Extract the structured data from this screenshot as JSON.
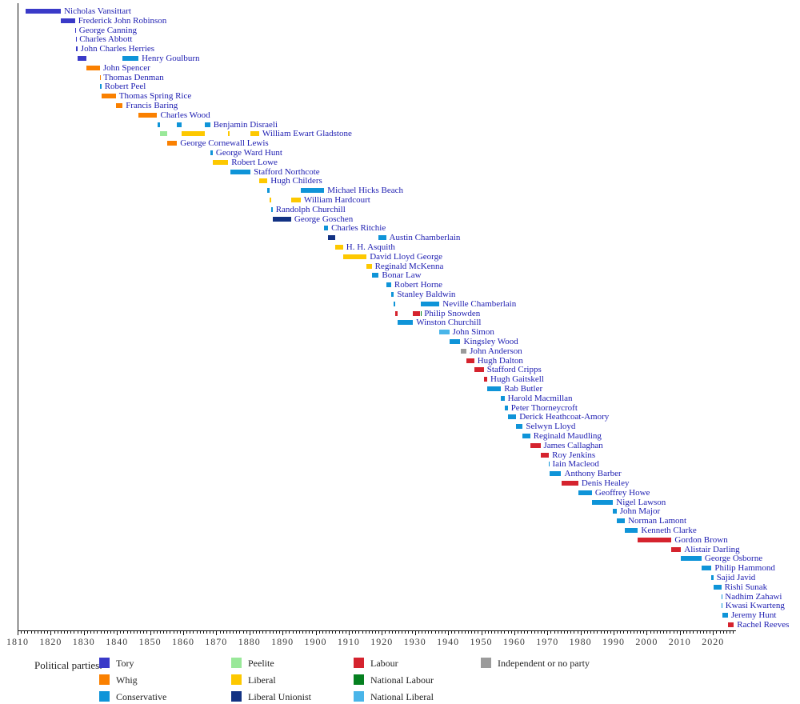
{
  "chart_data": {
    "type": "timeline",
    "description": "Terms of UK Chancellors of the Exchequer as horizontal bars coloured by political party",
    "x_axis": {
      "min": 1810,
      "max": 2027,
      "major_tick_step": 10,
      "minor_tick_step": 1,
      "tick_labels": [
        1810,
        1820,
        1830,
        1840,
        1850,
        1860,
        1870,
        1880,
        1890,
        1900,
        1910,
        1920,
        1930,
        1940,
        1950,
        1960,
        1970,
        1980,
        1990,
        2000,
        2010,
        2020
      ]
    },
    "colors": {
      "name_text": "#1c1cb0",
      "axis": "#111111",
      "tick_label": "#3a3a3a",
      "legend_text": "#222222"
    },
    "parties": {
      "tory": {
        "label": "Tory",
        "color": "#3a3ac8"
      },
      "whig": {
        "label": "Whig",
        "color": "#fa8000"
      },
      "conservative": {
        "label": "Conservative",
        "color": "#0f94d8"
      },
      "peelite": {
        "label": "Peelite",
        "color": "#99e899"
      },
      "liberal": {
        "label": "Liberal",
        "color": "#fdc800"
      },
      "liberal_unionist": {
        "label": "Liberal Unionist",
        "color": "#123283"
      },
      "labour": {
        "label": "Labour",
        "color": "#d5232e"
      },
      "national_labour": {
        "label": "National Labour",
        "color": "#058020"
      },
      "national_liberal": {
        "label": "National Liberal",
        "color": "#49b5e9"
      },
      "independent": {
        "label": "Independent or no party",
        "color": "#9b9b9b"
      }
    },
    "legend": {
      "title": "Political parties:",
      "columns": [
        [
          "tory",
          "whig",
          "conservative"
        ],
        [
          "peelite",
          "liberal",
          "liberal_unionist"
        ],
        [
          "labour",
          "national_labour",
          "national_liberal"
        ],
        [
          "independent"
        ]
      ]
    },
    "chancellors": [
      {
        "name": "Nicholas Vansittart",
        "terms": [
          [
            1812.4,
            1823.08,
            "tory"
          ]
        ]
      },
      {
        "name": "Frederick John Robinson",
        "terms": [
          [
            1823.08,
            1827.32,
            "tory"
          ]
        ]
      },
      {
        "name": "George Canning",
        "terms": [
          [
            1827.32,
            1827.6,
            "tory"
          ]
        ]
      },
      {
        "name": "Charles Abbott",
        "terms": [
          [
            1827.6,
            1827.68,
            "tory"
          ]
        ]
      },
      {
        "name": "John Charles Herries",
        "terms": [
          [
            1827.68,
            1828.07,
            "tory"
          ]
        ]
      },
      {
        "name": "Henry Goulburn",
        "terms": [
          [
            1828.07,
            1830.88,
            "tory"
          ],
          [
            1841.7,
            1846.5,
            "conservative"
          ]
        ]
      },
      {
        "name": "John Spencer",
        "terms": [
          [
            1830.88,
            1834.87,
            "whig"
          ]
        ]
      },
      {
        "name": "Thomas Denman",
        "terms": [
          [
            1834.87,
            1834.96,
            "whig"
          ]
        ]
      },
      {
        "name": "Robert Peel",
        "terms": [
          [
            1834.96,
            1835.3,
            "conservative"
          ]
        ]
      },
      {
        "name": "Thomas Spring Rice",
        "terms": [
          [
            1835.3,
            1839.67,
            "whig"
          ]
        ]
      },
      {
        "name": "Francis Baring",
        "terms": [
          [
            1839.67,
            1841.7,
            "whig"
          ]
        ]
      },
      {
        "name": "Charles Wood",
        "terms": [
          [
            1846.5,
            1852.16,
            "whig"
          ]
        ]
      },
      {
        "name": "Benjamin Disraeli",
        "terms": [
          [
            1852.16,
            1852.97,
            "conservative"
          ],
          [
            1858.16,
            1859.45,
            "conservative"
          ],
          [
            1866.5,
            1868.16,
            "conservative"
          ]
        ]
      },
      {
        "name": "William Ewart Gladstone",
        "terms": [
          [
            1852.97,
            1855.14,
            "peelite"
          ],
          [
            1859.45,
            1866.5,
            "liberal"
          ],
          [
            1873.6,
            1874.14,
            "liberal"
          ],
          [
            1880.32,
            1882.95,
            "liberal"
          ]
        ]
      },
      {
        "name": "George Cornewall Lewis",
        "terms": [
          [
            1855.14,
            1858.16,
            "whig"
          ]
        ]
      },
      {
        "name": "George Ward Hunt",
        "terms": [
          [
            1868.16,
            1868.92,
            "conservative"
          ]
        ]
      },
      {
        "name": "Robert Lowe",
        "terms": [
          [
            1868.92,
            1873.6,
            "liberal"
          ]
        ]
      },
      {
        "name": "Stafford Northcote",
        "terms": [
          [
            1874.14,
            1880.32,
            "conservative"
          ]
        ]
      },
      {
        "name": "Hugh Childers",
        "terms": [
          [
            1882.95,
            1885.45,
            "liberal"
          ]
        ]
      },
      {
        "name": "Michael Hicks Beach",
        "terms": [
          [
            1885.45,
            1886.09,
            "conservative"
          ],
          [
            1895.5,
            1902.6,
            "conservative"
          ]
        ]
      },
      {
        "name": "William Hardcourt",
        "terms": [
          [
            1886.09,
            1886.6,
            "liberal"
          ],
          [
            1892.6,
            1895.5,
            "liberal"
          ]
        ]
      },
      {
        "name": "Randolph Churchill",
        "terms": [
          [
            1886.6,
            1887.0,
            "conservative"
          ]
        ]
      },
      {
        "name": "George Goschen",
        "terms": [
          [
            1887.0,
            1892.6,
            "liberal_unionist"
          ]
        ]
      },
      {
        "name": "Charles Ritchie",
        "terms": [
          [
            1902.6,
            1903.76,
            "conservative"
          ]
        ]
      },
      {
        "name": "Austin Chamberlain",
        "terms": [
          [
            1903.76,
            1905.93,
            "liberal_unionist"
          ],
          [
            1919.05,
            1921.27,
            "conservative"
          ]
        ]
      },
      {
        "name": "H. H. Asquith",
        "terms": [
          [
            1905.93,
            1908.29,
            "liberal"
          ]
        ]
      },
      {
        "name": "David Lloyd George",
        "terms": [
          [
            1908.29,
            1915.39,
            "liberal"
          ]
        ]
      },
      {
        "name": "Reginald McKenna",
        "terms": [
          [
            1915.39,
            1916.93,
            "liberal"
          ]
        ]
      },
      {
        "name": "Bonar Law",
        "terms": [
          [
            1916.93,
            1919.05,
            "conservative"
          ]
        ]
      },
      {
        "name": "Robert Horne",
        "terms": [
          [
            1921.27,
            1922.8,
            "conservative"
          ]
        ]
      },
      {
        "name": "Stanley Baldwin",
        "terms": [
          [
            1922.8,
            1923.65,
            "conservative"
          ]
        ]
      },
      {
        "name": "Neville Chamberlain",
        "terms": [
          [
            1923.65,
            1924.06,
            "conservative"
          ],
          [
            1931.84,
            1937.4,
            "conservative"
          ]
        ]
      },
      {
        "name": "Philip Snowden",
        "terms": [
          [
            1924.06,
            1924.84,
            "labour"
          ],
          [
            1929.43,
            1931.65,
            "labour"
          ],
          [
            1931.65,
            1931.84,
            "national_labour"
          ]
        ]
      },
      {
        "name": "Winston Churchill",
        "terms": [
          [
            1924.84,
            1929.43,
            "conservative"
          ]
        ]
      },
      {
        "name": "John Simon",
        "terms": [
          [
            1937.4,
            1940.36,
            "national_liberal"
          ]
        ]
      },
      {
        "name": "Kingsley Wood",
        "terms": [
          [
            1940.36,
            1943.72,
            "conservative"
          ]
        ]
      },
      {
        "name": "John Anderson",
        "terms": [
          [
            1943.72,
            1945.57,
            "independent"
          ]
        ]
      },
      {
        "name": "Hugh Dalton",
        "terms": [
          [
            1945.57,
            1947.88,
            "labour"
          ]
        ]
      },
      {
        "name": "Stafford Cripps",
        "terms": [
          [
            1947.88,
            1950.8,
            "labour"
          ]
        ]
      },
      {
        "name": "Hugh Gaitskell",
        "terms": [
          [
            1950.8,
            1951.82,
            "labour"
          ]
        ]
      },
      {
        "name": "Rab Butler",
        "terms": [
          [
            1951.82,
            1955.97,
            "conservative"
          ]
        ]
      },
      {
        "name": "Harold Macmillan",
        "terms": [
          [
            1955.97,
            1957.04,
            "conservative"
          ]
        ]
      },
      {
        "name": "Peter Thorneycroft",
        "terms": [
          [
            1957.04,
            1958.04,
            "conservative"
          ]
        ]
      },
      {
        "name": "Derick Heathcoat-Amory",
        "terms": [
          [
            1958.04,
            1960.56,
            "conservative"
          ]
        ]
      },
      {
        "name": "Selwyn Lloyd",
        "terms": [
          [
            1960.56,
            1962.54,
            "conservative"
          ]
        ]
      },
      {
        "name": "Reginald Maudling",
        "terms": [
          [
            1962.54,
            1964.79,
            "conservative"
          ]
        ]
      },
      {
        "name": "James Callaghan",
        "terms": [
          [
            1964.79,
            1967.9,
            "labour"
          ]
        ]
      },
      {
        "name": "Roy Jenkins",
        "terms": [
          [
            1967.9,
            1970.46,
            "labour"
          ]
        ]
      },
      {
        "name": "Iain Macleod",
        "terms": [
          [
            1970.46,
            1970.55,
            "conservative"
          ]
        ]
      },
      {
        "name": "Anthony Barber",
        "terms": [
          [
            1970.56,
            1974.17,
            "conservative"
          ]
        ]
      },
      {
        "name": "Denis Healey",
        "terms": [
          [
            1974.17,
            1979.35,
            "labour"
          ]
        ]
      },
      {
        "name": "Geoffrey Howe",
        "terms": [
          [
            1979.35,
            1983.44,
            "conservative"
          ]
        ]
      },
      {
        "name": "Nigel Lawson",
        "terms": [
          [
            1983.44,
            1989.82,
            "conservative"
          ]
        ]
      },
      {
        "name": "John Major",
        "terms": [
          [
            1989.82,
            1990.9,
            "conservative"
          ]
        ]
      },
      {
        "name": "Norman Lamont",
        "terms": [
          [
            1990.9,
            1993.4,
            "conservative"
          ]
        ]
      },
      {
        "name": "Kenneth Clarke",
        "terms": [
          [
            1993.4,
            1997.34,
            "conservative"
          ]
        ]
      },
      {
        "name": "Gordon Brown",
        "terms": [
          [
            1997.34,
            2007.49,
            "labour"
          ]
        ]
      },
      {
        "name": "Alistair Darling",
        "terms": [
          [
            2007.49,
            2010.36,
            "labour"
          ]
        ]
      },
      {
        "name": "George Osborne",
        "terms": [
          [
            2010.36,
            2016.54,
            "conservative"
          ]
        ]
      },
      {
        "name": "Philip Hammond",
        "terms": [
          [
            2016.54,
            2019.56,
            "conservative"
          ]
        ]
      },
      {
        "name": "Sajid Javid",
        "terms": [
          [
            2019.56,
            2020.12,
            "conservative"
          ]
        ]
      },
      {
        "name": "Rishi Sunak",
        "terms": [
          [
            2020.12,
            2022.52,
            "conservative"
          ]
        ]
      },
      {
        "name": "Nadhim Zahawi",
        "terms": [
          [
            2022.52,
            2022.69,
            "conservative"
          ]
        ]
      },
      {
        "name": "Kwasi Kwarteng",
        "terms": [
          [
            2022.69,
            2022.79,
            "conservative"
          ]
        ]
      },
      {
        "name": "Jeremy Hunt",
        "terms": [
          [
            2022.79,
            2024.51,
            "conservative"
          ]
        ]
      },
      {
        "name": "Rachel Reeves",
        "terms": [
          [
            2024.51,
            2026.3,
            "labour"
          ]
        ]
      }
    ]
  }
}
